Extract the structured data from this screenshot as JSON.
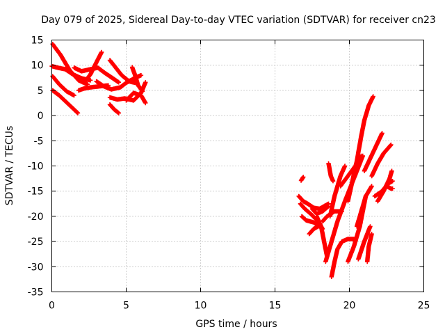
{
  "chart_data": {
    "type": "scatter",
    "title": "Day 079 of 2025, Sidereal Day-to-day VTEC variation (SDTVAR) for receiver cn23",
    "xlabel": "GPS time / hours",
    "ylabel": "SDTVAR / TECUs",
    "xlim": [
      0,
      25
    ],
    "ylim": [
      -35,
      15
    ],
    "xticks": [
      0,
      5,
      10,
      15,
      20,
      25
    ],
    "yticks": [
      15,
      10,
      5,
      0,
      -5,
      -10,
      -15,
      -20,
      -25,
      -30,
      -35
    ],
    "grid": true,
    "marker": "+",
    "series_color": "#ff0000",
    "tracks": [
      [
        [
          0.05,
          14.2
        ],
        [
          0.6,
          12.0
        ],
        [
          1.2,
          9.0
        ],
        [
          1.8,
          7.0
        ],
        [
          2.4,
          6.2
        ]
      ],
      [
        [
          0.0,
          9.8
        ],
        [
          0.4,
          9.5
        ],
        [
          0.9,
          9.2
        ],
        [
          1.4,
          8.2
        ],
        [
          2.0,
          7.4
        ],
        [
          2.6,
          7.0
        ]
      ],
      [
        [
          0.05,
          7.8
        ],
        [
          0.5,
          6.2
        ],
        [
          1.0,
          4.8
        ],
        [
          1.5,
          4.0
        ]
      ],
      [
        [
          0.05,
          5.0
        ],
        [
          0.5,
          4.0
        ],
        [
          1.0,
          2.6
        ],
        [
          1.5,
          1.2
        ],
        [
          1.75,
          0.5
        ]
      ],
      [
        [
          1.5,
          9.5
        ],
        [
          2.0,
          8.8
        ],
        [
          2.6,
          9.2
        ],
        [
          3.1,
          9.5
        ],
        [
          3.5,
          8.6
        ],
        [
          4.1,
          7.4
        ],
        [
          4.5,
          6.6
        ]
      ],
      [
        [
          1.8,
          5.0
        ],
        [
          2.2,
          5.4
        ],
        [
          2.6,
          5.6
        ],
        [
          3.2,
          5.8
        ],
        [
          3.8,
          6.0
        ]
      ],
      [
        [
          2.3,
          7.0
        ],
        [
          2.6,
          8.2
        ],
        [
          2.9,
          10.0
        ],
        [
          3.35,
          12.6
        ]
      ],
      [
        [
          3.0,
          6.8
        ],
        [
          3.5,
          5.8
        ],
        [
          4.0,
          5.2
        ],
        [
          4.6,
          5.6
        ],
        [
          5.0,
          6.5
        ],
        [
          5.6,
          7.5
        ],
        [
          6.0,
          8.0
        ]
      ],
      [
        [
          3.9,
          11.0
        ],
        [
          4.3,
          9.5
        ],
        [
          4.7,
          8.0
        ],
        [
          5.2,
          6.8
        ],
        [
          5.6,
          6.5
        ]
      ],
      [
        [
          5.4,
          9.6
        ],
        [
          5.6,
          8.0
        ],
        [
          5.8,
          6.0
        ],
        [
          6.1,
          4.8
        ]
      ],
      [
        [
          3.9,
          3.6
        ],
        [
          4.4,
          3.2
        ],
        [
          4.9,
          3.4
        ],
        [
          5.5,
          3.0
        ],
        [
          6.0,
          4.5
        ],
        [
          6.3,
          6.6
        ]
      ],
      [
        [
          3.9,
          2.2
        ],
        [
          4.2,
          1.2
        ],
        [
          4.5,
          0.5
        ]
      ],
      [
        [
          5.0,
          3.0
        ],
        [
          5.5,
          4.5
        ],
        [
          6.0,
          4.0
        ],
        [
          6.3,
          2.5
        ]
      ],
      [
        [
          16.75,
          -12.9
        ],
        [
          16.9,
          -12.2
        ]
      ],
      [
        [
          16.6,
          -16.0
        ],
        [
          16.9,
          -17.0
        ],
        [
          17.2,
          -17.5
        ],
        [
          17.6,
          -18.3
        ],
        [
          18.0,
          -18.5
        ],
        [
          18.3,
          -18.0
        ],
        [
          18.6,
          -17.5
        ]
      ],
      [
        [
          16.7,
          -17.5
        ],
        [
          17.0,
          -18.5
        ],
        [
          17.4,
          -19.5
        ],
        [
          17.9,
          -21.0
        ],
        [
          18.2,
          -22.5
        ]
      ],
      [
        [
          16.8,
          -20.0
        ],
        [
          17.1,
          -20.8
        ],
        [
          17.6,
          -21.2
        ],
        [
          18.0,
          -22.0
        ]
      ],
      [
        [
          17.8,
          -20.0
        ],
        [
          18.1,
          -22.0
        ],
        [
          18.3,
          -25.0
        ],
        [
          18.5,
          -28.0
        ]
      ],
      [
        [
          17.3,
          -23.5
        ],
        [
          17.6,
          -22.5
        ],
        [
          17.9,
          -22.0
        ]
      ],
      [
        [
          18.2,
          -21.0
        ],
        [
          18.5,
          -20.0
        ],
        [
          19.0,
          -19.0
        ],
        [
          19.5,
          -19.0
        ]
      ],
      [
        [
          18.7,
          -20.0
        ],
        [
          19.0,
          -16.0
        ],
        [
          19.4,
          -12.0
        ],
        [
          19.7,
          -10.0
        ]
      ],
      [
        [
          18.6,
          -9.5
        ],
        [
          18.75,
          -12.0
        ],
        [
          18.9,
          -13.0
        ]
      ],
      [
        [
          18.8,
          -32.0
        ],
        [
          19.0,
          -29.0
        ],
        [
          19.2,
          -26.5
        ],
        [
          19.5,
          -25.0
        ],
        [
          19.9,
          -24.5
        ],
        [
          20.3,
          -24.5
        ]
      ],
      [
        [
          18.4,
          -29.0
        ],
        [
          18.8,
          -25.0
        ],
        [
          19.2,
          -21.0
        ],
        [
          19.7,
          -17.0
        ],
        [
          20.1,
          -14.0
        ],
        [
          20.5,
          -11.0
        ],
        [
          20.9,
          -8.0
        ]
      ],
      [
        [
          19.9,
          -29.0
        ],
        [
          20.3,
          -26.0
        ],
        [
          20.7,
          -22.0
        ],
        [
          21.1,
          -16.0
        ],
        [
          21.5,
          -14.0
        ]
      ],
      [
        [
          19.4,
          -14.0
        ],
        [
          19.9,
          -12.0
        ],
        [
          20.4,
          -10.0
        ],
        [
          20.8,
          -8.0
        ]
      ],
      [
        [
          19.9,
          -17.0
        ],
        [
          20.2,
          -13.0
        ],
        [
          20.5,
          -9.0
        ],
        [
          20.8,
          -4.0
        ],
        [
          21.0,
          -1.0
        ],
        [
          21.3,
          2.0
        ],
        [
          21.6,
          3.8
        ]
      ],
      [
        [
          21.2,
          -29.0
        ],
        [
          21.3,
          -26.0
        ],
        [
          21.5,
          -23.5
        ]
      ],
      [
        [
          21.0,
          -11.0
        ],
        [
          21.4,
          -8.5
        ],
        [
          21.8,
          -6.0
        ],
        [
          22.2,
          -3.5
        ]
      ],
      [
        [
          21.5,
          -12.0
        ],
        [
          21.9,
          -9.5
        ],
        [
          22.3,
          -7.5
        ],
        [
          22.8,
          -5.8
        ]
      ],
      [
        [
          21.7,
          -16.0
        ],
        [
          22.2,
          -15.0
        ],
        [
          22.6,
          -13.5
        ],
        [
          22.9,
          -13.0
        ]
      ],
      [
        [
          21.9,
          -17.0
        ],
        [
          22.3,
          -15.0
        ],
        [
          22.7,
          -12.5
        ],
        [
          22.85,
          -11.0
        ]
      ],
      [
        [
          22.5,
          -14.0
        ],
        [
          22.8,
          -14.5
        ],
        [
          22.9,
          -14.5
        ]
      ],
      [
        [
          20.5,
          -22.0
        ],
        [
          20.8,
          -19.0
        ],
        [
          21.1,
          -16.0
        ]
      ],
      [
        [
          20.6,
          -28.5
        ],
        [
          21.0,
          -25.0
        ],
        [
          21.4,
          -22.0
        ]
      ],
      [
        [
          17.5,
          -18.5
        ],
        [
          17.8,
          -19.5
        ],
        [
          18.2,
          -19.0
        ],
        [
          18.6,
          -18.0
        ]
      ]
    ]
  }
}
